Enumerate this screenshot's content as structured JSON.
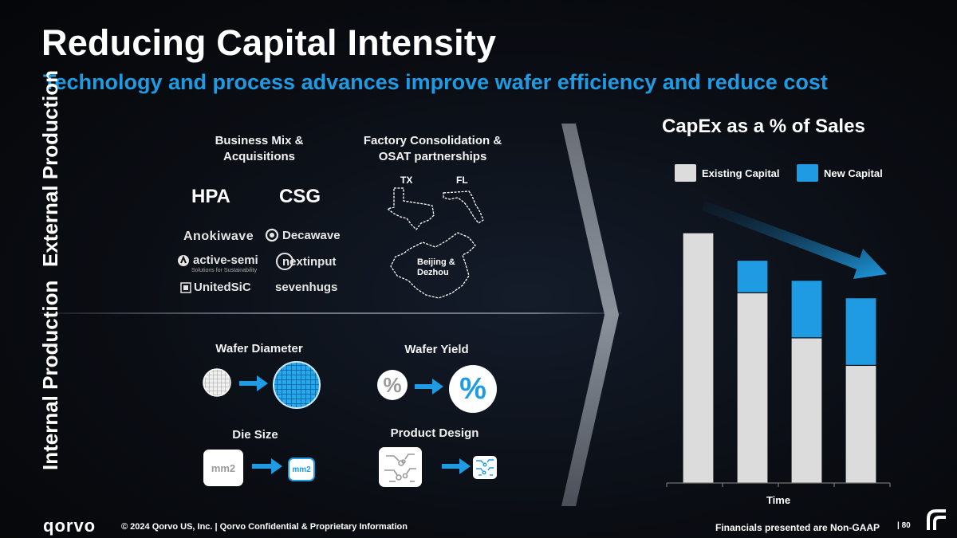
{
  "title": "Reducing Capital Intensity",
  "subtitle": "Technology and process advances improve wafer efficiency and reduce cost",
  "labels": {
    "external_production": "External Production",
    "internal_production": "Internal Production"
  },
  "external": {
    "business_mix_header": "Business Mix & Acquisitions",
    "factory_header": "Factory Consolidation & OSAT partnerships",
    "segments": [
      "HPA",
      "CSG"
    ],
    "hpa_logos": [
      "Anokiwave",
      "active-semi",
      "UnitedSiC"
    ],
    "active_semi_tagline": "Solutions for Sustainability",
    "csg_logos": [
      "Decawave",
      "nextinput",
      "sevenhugs"
    ],
    "states": [
      "TX",
      "FL"
    ],
    "china_label_1": "Beijing &",
    "china_label_2": "Dezhou"
  },
  "internal": {
    "wafer_diameter": "Wafer Diameter",
    "wafer_yield": "Wafer Yield",
    "die_size": "Die Size",
    "product_design": "Product Design",
    "percent_symbol": "%",
    "mm2_text": "mm2"
  },
  "colors": {
    "accent_blue": "#1e9be2",
    "existing_capital": "#dcdcdc",
    "new_capital": "#1e9be2"
  },
  "chart_data": {
    "type": "bar",
    "title": "CapEx as a % of Sales",
    "xlabel": "Time",
    "ylabel": "",
    "categories": [
      "",
      "",
      "",
      ""
    ],
    "series": [
      {
        "name": "Existing Capital",
        "values": [
          100,
          76,
          58,
          47
        ]
      },
      {
        "name": "New Capital",
        "values": [
          0,
          13,
          23,
          27
        ]
      }
    ],
    "ylim": [
      0,
      100
    ],
    "grid": false,
    "legend": "top",
    "stacked": true,
    "trend_arrow": "down"
  },
  "footer": {
    "brand": "qorvo",
    "copyright": "© 2024 Qorvo US, Inc. | Qorvo Confidential & Proprietary Information",
    "note": "Financials presented are Non-GAAP",
    "page": "80"
  }
}
